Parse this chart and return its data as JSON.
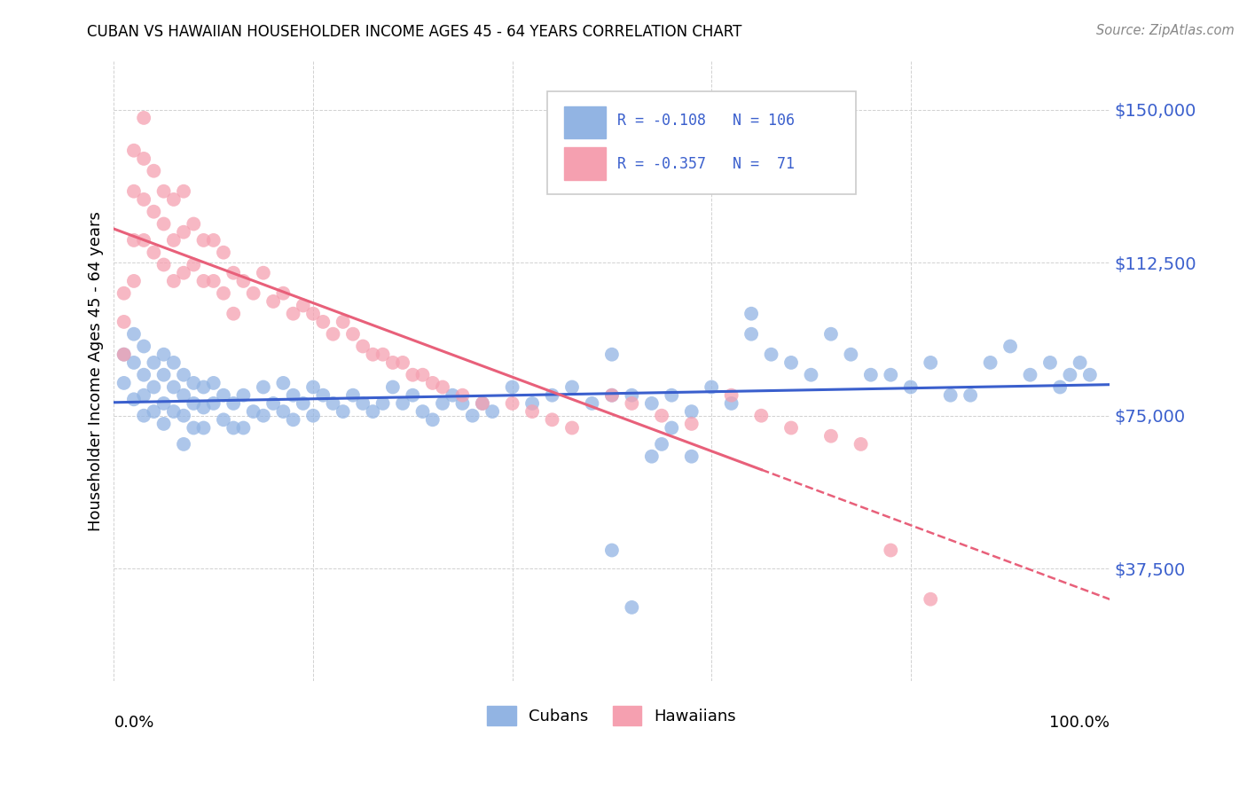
{
  "title": "CUBAN VS HAWAIIAN HOUSEHOLDER INCOME AGES 45 - 64 YEARS CORRELATION CHART",
  "source": "Source: ZipAtlas.com",
  "ylabel": "Householder Income Ages 45 - 64 years",
  "ytick_labels": [
    "$37,500",
    "$75,000",
    "$112,500",
    "$150,000"
  ],
  "ytick_values": [
    37500,
    75000,
    112500,
    150000
  ],
  "ymin": 10000,
  "ymax": 162000,
  "xmin": 0.0,
  "xmax": 1.0,
  "cuban_R": "-0.108",
  "cuban_N": "106",
  "hawaiian_R": "-0.357",
  "hawaiian_N": "71",
  "blue_color": "#92B4E3",
  "pink_color": "#F5A0B0",
  "line_blue": "#3A5FCD",
  "line_pink": "#E8607A",
  "legend_label1": "Cubans",
  "legend_label2": "Hawaiians",
  "cuban_scatter_x": [
    0.01,
    0.01,
    0.02,
    0.02,
    0.02,
    0.03,
    0.03,
    0.03,
    0.03,
    0.04,
    0.04,
    0.04,
    0.05,
    0.05,
    0.05,
    0.05,
    0.06,
    0.06,
    0.06,
    0.07,
    0.07,
    0.07,
    0.07,
    0.08,
    0.08,
    0.08,
    0.09,
    0.09,
    0.09,
    0.1,
    0.1,
    0.11,
    0.11,
    0.12,
    0.12,
    0.13,
    0.13,
    0.14,
    0.15,
    0.15,
    0.16,
    0.17,
    0.17,
    0.18,
    0.18,
    0.19,
    0.2,
    0.2,
    0.21,
    0.22,
    0.23,
    0.24,
    0.25,
    0.26,
    0.27,
    0.28,
    0.29,
    0.3,
    0.31,
    0.32,
    0.33,
    0.34,
    0.35,
    0.36,
    0.37,
    0.38,
    0.4,
    0.42,
    0.44,
    0.46,
    0.48,
    0.5,
    0.5,
    0.52,
    0.54,
    0.56,
    0.58,
    0.6,
    0.62,
    0.64,
    0.64,
    0.66,
    0.68,
    0.7,
    0.72,
    0.74,
    0.76,
    0.78,
    0.8,
    0.82,
    0.84,
    0.86,
    0.88,
    0.9,
    0.92,
    0.94,
    0.95,
    0.96,
    0.97,
    0.98,
    0.5,
    0.52,
    0.54,
    0.55,
    0.56,
    0.58
  ],
  "cuban_scatter_y": [
    90000,
    83000,
    95000,
    88000,
    79000,
    92000,
    85000,
    80000,
    75000,
    88000,
    82000,
    76000,
    90000,
    85000,
    78000,
    73000,
    88000,
    82000,
    76000,
    85000,
    80000,
    75000,
    68000,
    83000,
    78000,
    72000,
    82000,
    77000,
    72000,
    83000,
    78000,
    80000,
    74000,
    78000,
    72000,
    80000,
    72000,
    76000,
    82000,
    75000,
    78000,
    83000,
    76000,
    80000,
    74000,
    78000,
    82000,
    75000,
    80000,
    78000,
    76000,
    80000,
    78000,
    76000,
    78000,
    82000,
    78000,
    80000,
    76000,
    74000,
    78000,
    80000,
    78000,
    75000,
    78000,
    76000,
    82000,
    78000,
    80000,
    82000,
    78000,
    90000,
    80000,
    80000,
    78000,
    80000,
    76000,
    82000,
    78000,
    100000,
    95000,
    90000,
    88000,
    85000,
    95000,
    90000,
    85000,
    85000,
    82000,
    88000,
    80000,
    80000,
    88000,
    92000,
    85000,
    88000,
    82000,
    85000,
    88000,
    85000,
    42000,
    28000,
    65000,
    68000,
    72000,
    65000
  ],
  "hawaiian_scatter_x": [
    0.01,
    0.01,
    0.01,
    0.02,
    0.02,
    0.02,
    0.02,
    0.03,
    0.03,
    0.03,
    0.03,
    0.04,
    0.04,
    0.04,
    0.05,
    0.05,
    0.05,
    0.06,
    0.06,
    0.06,
    0.07,
    0.07,
    0.07,
    0.08,
    0.08,
    0.09,
    0.09,
    0.1,
    0.1,
    0.11,
    0.11,
    0.12,
    0.12,
    0.13,
    0.14,
    0.15,
    0.16,
    0.17,
    0.18,
    0.19,
    0.2,
    0.21,
    0.22,
    0.23,
    0.24,
    0.25,
    0.26,
    0.27,
    0.28,
    0.29,
    0.3,
    0.31,
    0.32,
    0.33,
    0.35,
    0.37,
    0.4,
    0.42,
    0.44,
    0.46,
    0.5,
    0.52,
    0.55,
    0.58,
    0.62,
    0.65,
    0.68,
    0.72,
    0.75,
    0.78,
    0.82
  ],
  "hawaiian_scatter_y": [
    105000,
    98000,
    90000,
    140000,
    130000,
    118000,
    108000,
    148000,
    138000,
    128000,
    118000,
    135000,
    125000,
    115000,
    130000,
    122000,
    112000,
    128000,
    118000,
    108000,
    130000,
    120000,
    110000,
    122000,
    112000,
    118000,
    108000,
    118000,
    108000,
    115000,
    105000,
    110000,
    100000,
    108000,
    105000,
    110000,
    103000,
    105000,
    100000,
    102000,
    100000,
    98000,
    95000,
    98000,
    95000,
    92000,
    90000,
    90000,
    88000,
    88000,
    85000,
    85000,
    83000,
    82000,
    80000,
    78000,
    78000,
    76000,
    74000,
    72000,
    80000,
    78000,
    75000,
    73000,
    80000,
    75000,
    72000,
    70000,
    68000,
    42000,
    30000
  ],
  "pink_line_solid_end": 0.65,
  "blue_line_color_text": "#3A5FCD"
}
